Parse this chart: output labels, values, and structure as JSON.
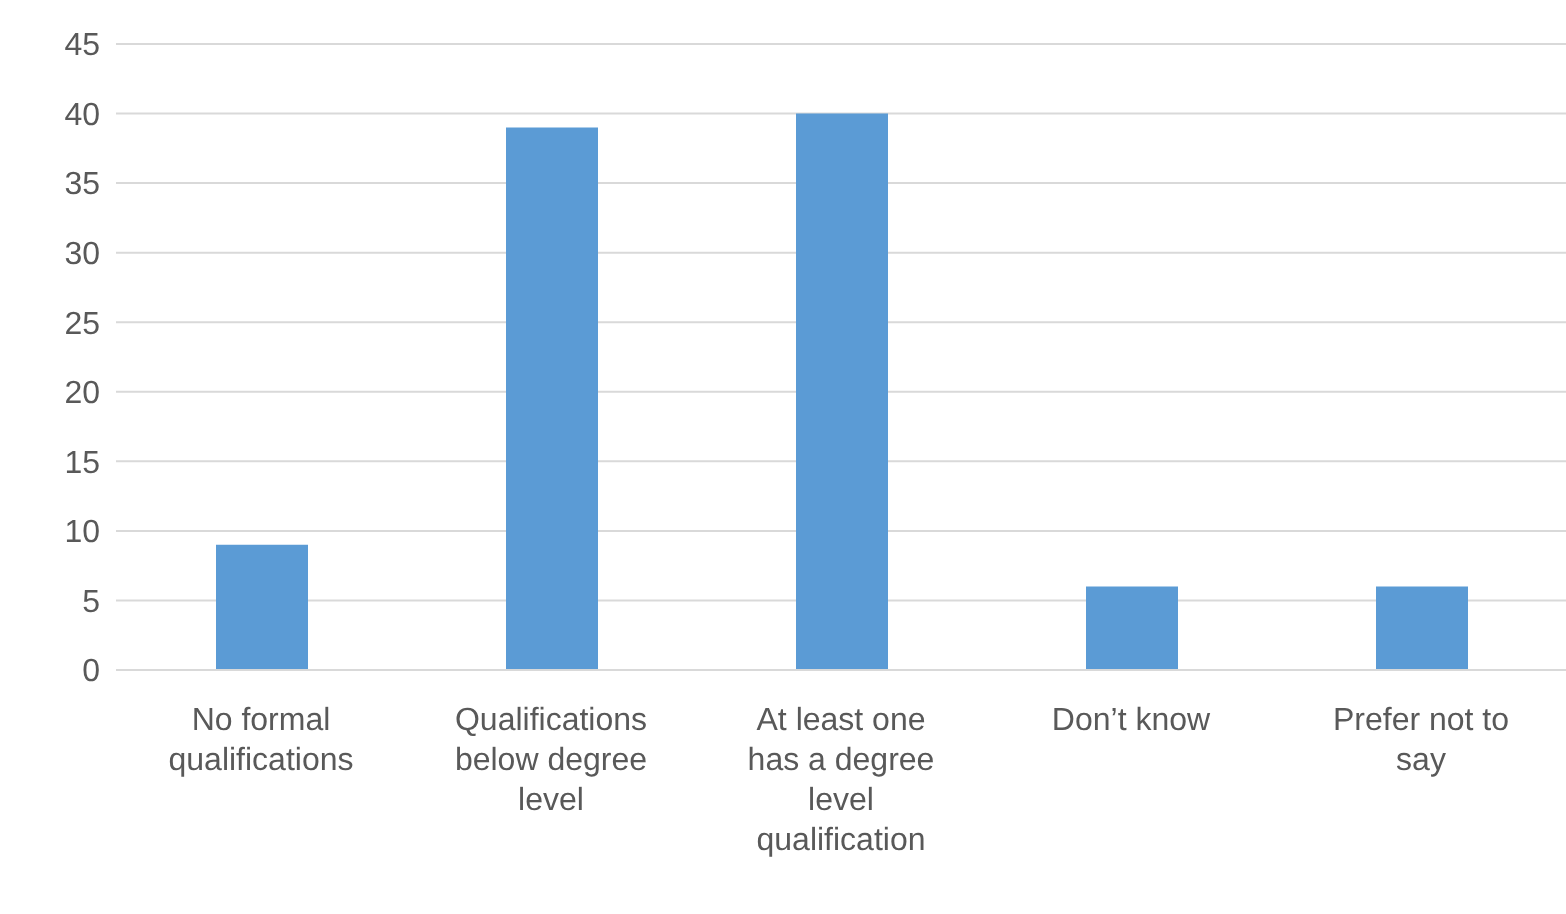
{
  "chart_data": {
    "type": "bar",
    "categories": [
      "No formal qualifications",
      "Qualifications below degree level",
      "At least one has a degree level qualification",
      "Don’t know",
      "Prefer not to say"
    ],
    "values": [
      9,
      39,
      40,
      6,
      6
    ],
    "color": "#5b9bd5",
    "ylim": [
      0,
      45
    ],
    "yticks": [
      0,
      5,
      10,
      15,
      20,
      25,
      30,
      35,
      40,
      45
    ],
    "grid": "y",
    "legend": false
  }
}
